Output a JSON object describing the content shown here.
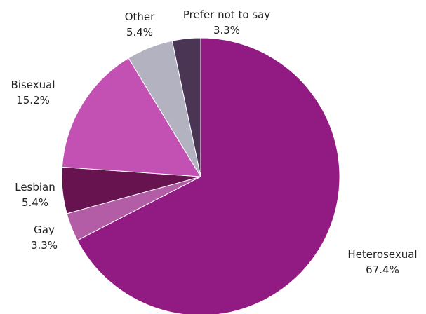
{
  "chart_data": {
    "type": "pie",
    "start_angle_deg": 0,
    "direction": "clockwise",
    "slices": [
      {
        "label": "Heterosexual",
        "value": 67.4,
        "display": "67.4%",
        "color": "#911b82"
      },
      {
        "label": "Gay",
        "value": 3.3,
        "display": "3.3%",
        "color": "#b25da5"
      },
      {
        "label": "Lesbian",
        "value": 5.4,
        "display": "5.4%",
        "color": "#66134f"
      },
      {
        "label": "Bisexual",
        "value": 15.2,
        "display": "15.2%",
        "color": "#c350b3"
      },
      {
        "label": "Other",
        "value": 5.4,
        "display": "5.4%",
        "color": "#b2b2c1"
      },
      {
        "label": "Prefer not to say",
        "value": 3.3,
        "display": "3.3%",
        "color": "#4a3654"
      }
    ]
  }
}
